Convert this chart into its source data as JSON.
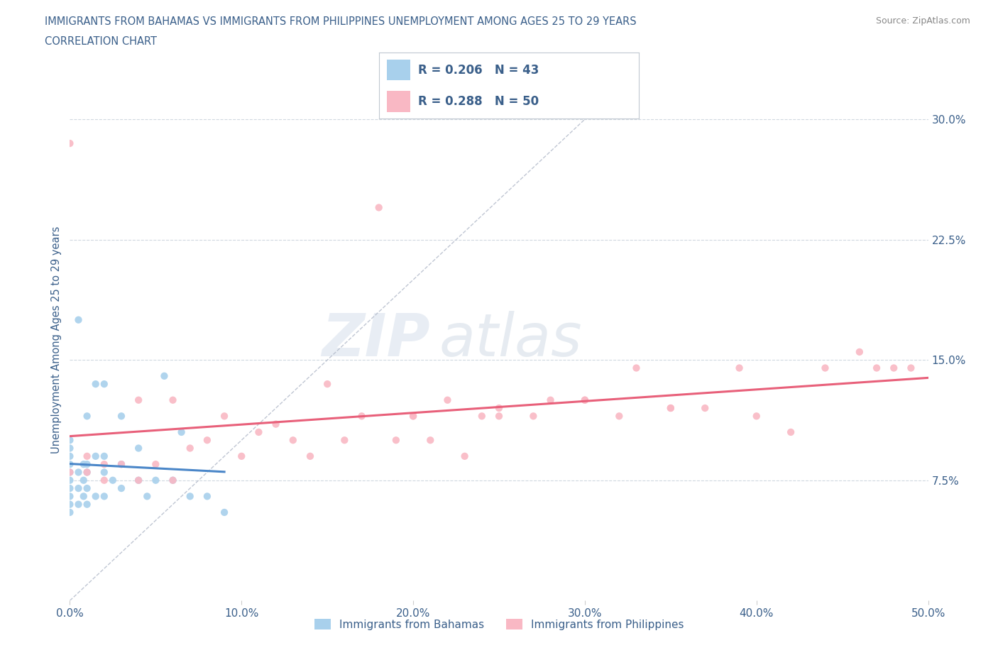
{
  "title_line1": "IMMIGRANTS FROM BAHAMAS VS IMMIGRANTS FROM PHILIPPINES UNEMPLOYMENT AMONG AGES 25 TO 29 YEARS",
  "title_line2": "CORRELATION CHART",
  "source_text": "Source: ZipAtlas.com",
  "ylabel": "Unemployment Among Ages 25 to 29 years",
  "xlim": [
    0.0,
    0.5
  ],
  "ylim": [
    0.0,
    0.325
  ],
  "xtick_values": [
    0.0,
    0.1,
    0.2,
    0.3,
    0.4,
    0.5
  ],
  "ytick_right_values": [
    0.075,
    0.15,
    0.225,
    0.3
  ],
  "R1": 0.206,
  "N1": 43,
  "R2": 0.288,
  "N2": 50,
  "color_bahamas": "#a8d0ec",
  "color_philippines": "#f9b8c4",
  "color_bahamas_line": "#4a86c8",
  "color_philippines_line": "#e8607a",
  "title_color": "#3a5f8a",
  "tick_label_color": "#3a5f8a",
  "legend_text_color": "#3a5f8a",
  "legend_label1": "Immigrants from Bahamas",
  "legend_label2": "Immigrants from Philippines",
  "bahamas_x": [
    0.0,
    0.0,
    0.0,
    0.0,
    0.0,
    0.0,
    0.0,
    0.0,
    0.0,
    0.0,
    0.005,
    0.005,
    0.005,
    0.005,
    0.008,
    0.008,
    0.008,
    0.01,
    0.01,
    0.01,
    0.01,
    0.01,
    0.015,
    0.015,
    0.015,
    0.02,
    0.02,
    0.02,
    0.02,
    0.025,
    0.03,
    0.03,
    0.03,
    0.04,
    0.04,
    0.045,
    0.05,
    0.055,
    0.06,
    0.065,
    0.07,
    0.08,
    0.09
  ],
  "bahamas_y": [
    0.055,
    0.06,
    0.065,
    0.07,
    0.075,
    0.08,
    0.085,
    0.09,
    0.095,
    0.1,
    0.06,
    0.07,
    0.08,
    0.175,
    0.065,
    0.075,
    0.085,
    0.06,
    0.07,
    0.08,
    0.085,
    0.115,
    0.065,
    0.09,
    0.135,
    0.065,
    0.08,
    0.09,
    0.135,
    0.075,
    0.07,
    0.085,
    0.115,
    0.075,
    0.095,
    0.065,
    0.075,
    0.14,
    0.075,
    0.105,
    0.065,
    0.065,
    0.055
  ],
  "philippines_x": [
    0.0,
    0.0,
    0.01,
    0.01,
    0.02,
    0.02,
    0.03,
    0.04,
    0.04,
    0.05,
    0.06,
    0.06,
    0.07,
    0.08,
    0.09,
    0.1,
    0.11,
    0.12,
    0.13,
    0.14,
    0.15,
    0.16,
    0.17,
    0.18,
    0.19,
    0.2,
    0.21,
    0.22,
    0.23,
    0.24,
    0.25,
    0.27,
    0.28,
    0.3,
    0.32,
    0.33,
    0.35,
    0.37,
    0.39,
    0.4,
    0.42,
    0.44,
    0.46,
    0.47,
    0.48,
    0.49,
    0.2,
    0.25,
    0.3,
    0.35
  ],
  "philippines_y": [
    0.08,
    0.285,
    0.08,
    0.09,
    0.075,
    0.085,
    0.085,
    0.075,
    0.125,
    0.085,
    0.075,
    0.125,
    0.095,
    0.1,
    0.115,
    0.09,
    0.105,
    0.11,
    0.1,
    0.09,
    0.135,
    0.1,
    0.115,
    0.245,
    0.1,
    0.115,
    0.1,
    0.125,
    0.09,
    0.115,
    0.115,
    0.115,
    0.125,
    0.125,
    0.115,
    0.145,
    0.12,
    0.12,
    0.145,
    0.115,
    0.105,
    0.145,
    0.155,
    0.145,
    0.145,
    0.145,
    0.115,
    0.12,
    0.125,
    0.12
  ]
}
